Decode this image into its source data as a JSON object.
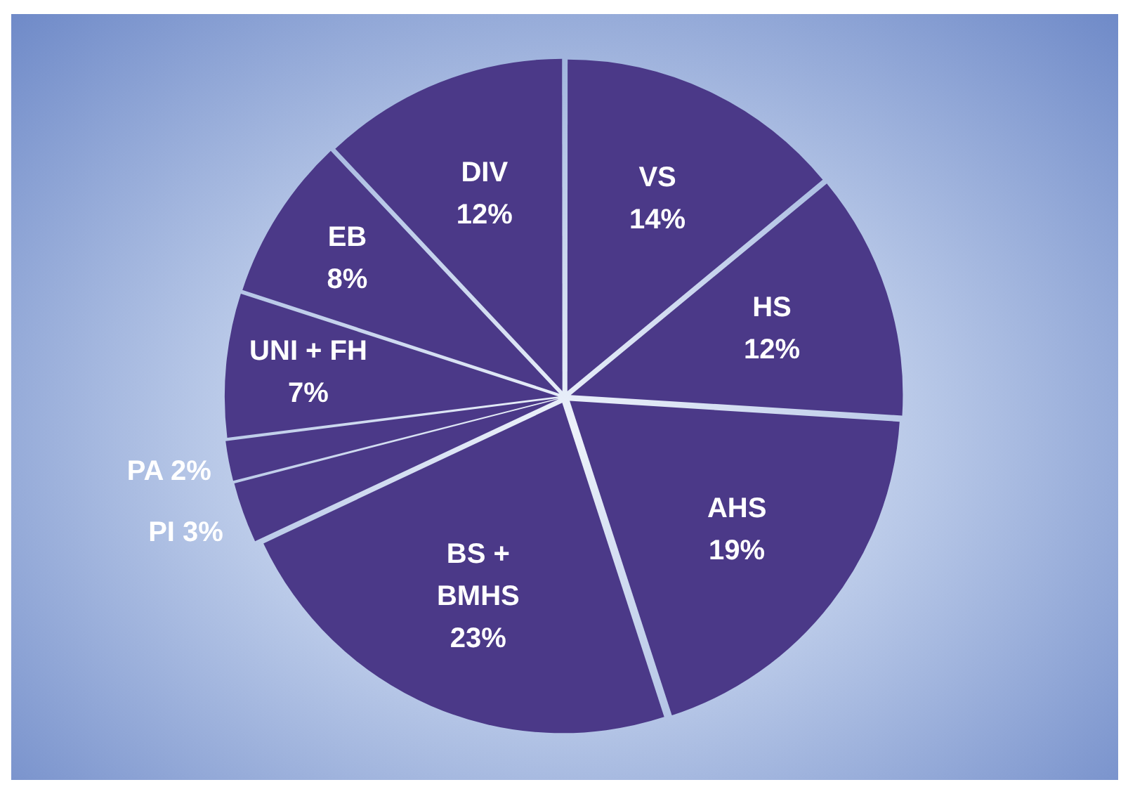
{
  "chart_data": {
    "type": "pie",
    "categories": [
      "VS",
      "HS",
      "AHS",
      "BS + BMHS",
      "PI",
      "PA",
      "UNI + FH",
      "EB",
      "DIV"
    ],
    "values": [
      14,
      12,
      19,
      23,
      3,
      2,
      7,
      8,
      12
    ],
    "value_labels": [
      "14%",
      "12%",
      "19%",
      "23%",
      "3%",
      "2%",
      "7%",
      "8%",
      "12%"
    ],
    "colors": [
      "#4b3988",
      "#4b3988",
      "#4b3988",
      "#4b3988",
      "#4b3988",
      "#4b3988",
      "#4b3988",
      "#4b3988",
      "#4b3988"
    ],
    "legend": false
  }
}
